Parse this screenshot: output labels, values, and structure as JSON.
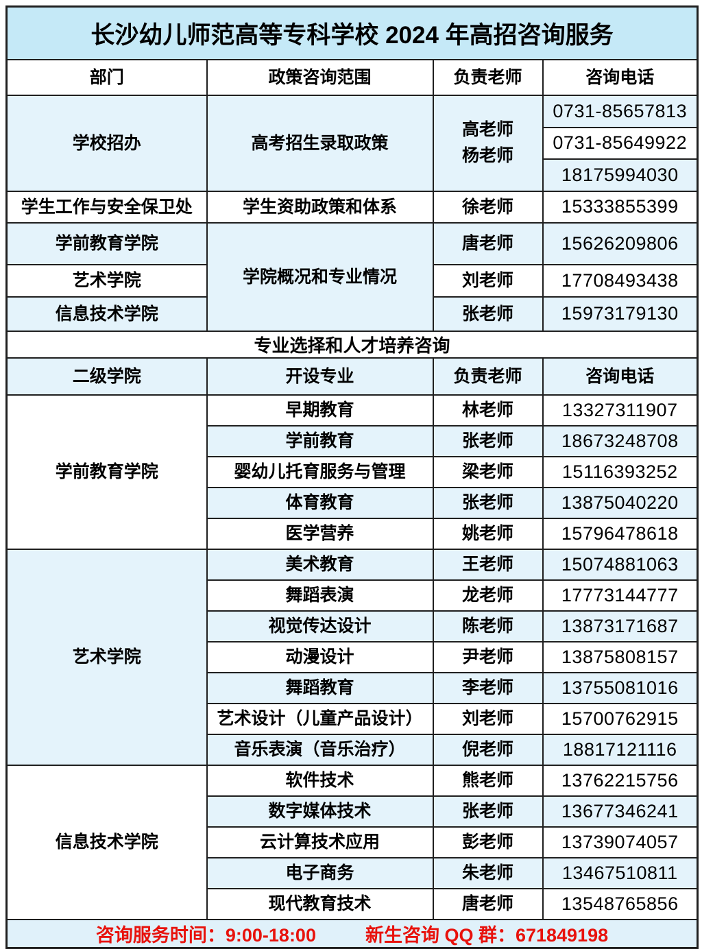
{
  "title": "长沙幼儿师范高等专科学校 2024 年高招咨询服务",
  "colors": {
    "title_bg": "#c5e9f7",
    "row_alt_bg": "#e4f3fb",
    "footer_bg": "#e0f1fa",
    "footer_text": "#e8120c",
    "border_color": "#1f1f1f"
  },
  "s1": {
    "headers": [
      "部门",
      "政策咨询范围",
      "负责老师",
      "咨询电话"
    ],
    "admissions": {
      "dept": "学校招办",
      "scope": "高考招生录取政策",
      "teachers": "高老师\n杨老师",
      "phones": [
        "0731-85657813",
        "0731-85649922",
        "18175994030"
      ]
    },
    "student_affairs": {
      "dept": "学生工作与安全保卫处",
      "scope": "学生资助政策和体系",
      "teacher": "徐老师",
      "phone": "15333855399"
    },
    "colleges_scope": "学院概况和专业情况",
    "colleges": [
      {
        "dept": "学前教育学院",
        "teacher": "唐老师",
        "phone": "15626209806"
      },
      {
        "dept": "艺术学院",
        "teacher": "刘老师",
        "phone": "17708493438"
      },
      {
        "dept": "信息技术学院",
        "teacher": "张老师",
        "phone": "15973179130"
      }
    ]
  },
  "s2_banner": "专业选择和人才培养咨询",
  "s2": {
    "headers": [
      "二级学院",
      "开设专业",
      "负责老师",
      "咨询电话"
    ],
    "groups": [
      {
        "college": "学前教育学院",
        "majors": [
          {
            "major": "早期教育",
            "teacher": "林老师",
            "phone": "13327311907"
          },
          {
            "major": "学前教育",
            "teacher": "张老师",
            "phone": "18673248708"
          },
          {
            "major": "婴幼儿托育服务与管理",
            "teacher": "梁老师",
            "phone": "15116393252"
          },
          {
            "major": "体育教育",
            "teacher": "张老师",
            "phone": "13875040220"
          },
          {
            "major": "医学营养",
            "teacher": "姚老师",
            "phone": "15796478618"
          }
        ]
      },
      {
        "college": "艺术学院",
        "majors": [
          {
            "major": "美术教育",
            "teacher": "王老师",
            "phone": "15074881063"
          },
          {
            "major": "舞蹈表演",
            "teacher": "龙老师",
            "phone": "17773144777"
          },
          {
            "major": "视觉传达设计",
            "teacher": "陈老师",
            "phone": "13873171687"
          },
          {
            "major": "动漫设计",
            "teacher": "尹老师",
            "phone": "13875808157"
          },
          {
            "major": "舞蹈教育",
            "teacher": "李老师",
            "phone": "13755081016"
          },
          {
            "major": "艺术设计（儿童产品设计）",
            "teacher": "刘老师",
            "phone": "15700762915"
          },
          {
            "major": "音乐表演（音乐治疗）",
            "teacher": "倪老师",
            "phone": "18817121116"
          }
        ]
      },
      {
        "college": "信息技术学院",
        "majors": [
          {
            "major": "软件技术",
            "teacher": "熊老师",
            "phone": "13762215756"
          },
          {
            "major": "数字媒体技术",
            "teacher": "张老师",
            "phone": "13677346241"
          },
          {
            "major": "云计算技术应用",
            "teacher": "彭老师",
            "phone": "13739074057"
          },
          {
            "major": "电子商务",
            "teacher": "朱老师",
            "phone": "13467510811"
          },
          {
            "major": "现代教育技术",
            "teacher": "唐老师",
            "phone": "13548765856"
          }
        ]
      }
    ]
  },
  "footer": {
    "time": "咨询服务时间：9:00-18:00",
    "qq": "新生咨询 QQ 群：671849198"
  }
}
